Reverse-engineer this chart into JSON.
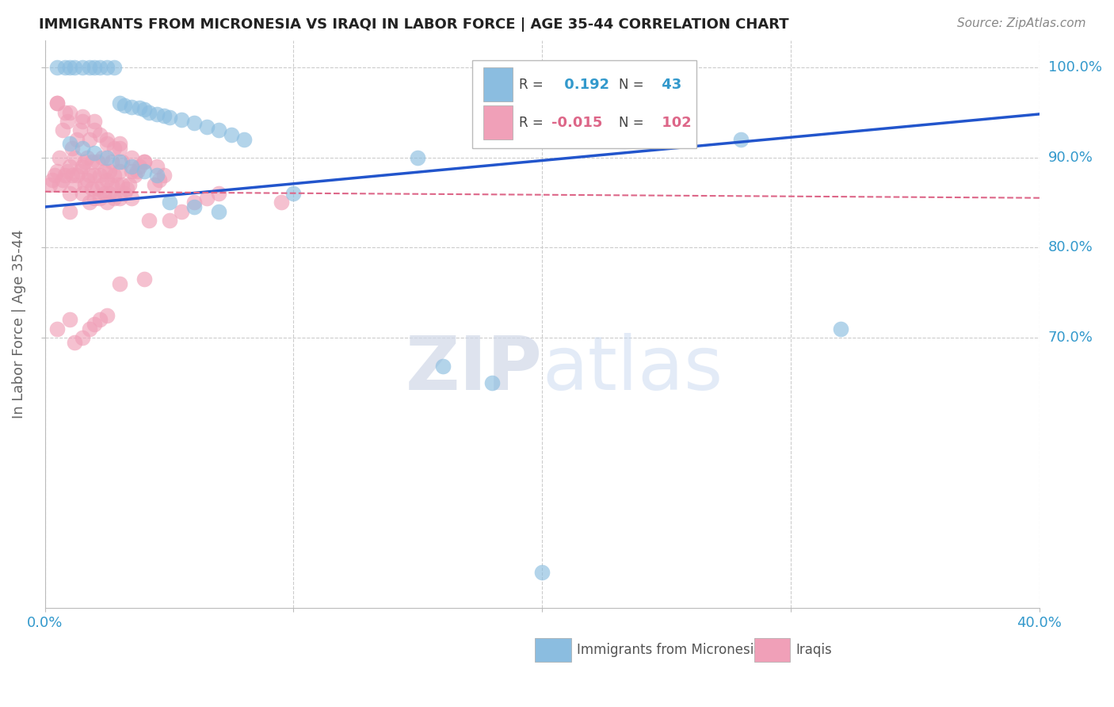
{
  "title": "IMMIGRANTS FROM MICRONESIA VS IRAQI IN LABOR FORCE | AGE 35-44 CORRELATION CHART",
  "source": "Source: ZipAtlas.com",
  "ylabel": "In Labor Force | Age 35-44",
  "xlim": [
    0.0,
    0.4
  ],
  "ylim": [
    0.4,
    1.03
  ],
  "ytick_labels": [
    "100.0%",
    "90.0%",
    "80.0%",
    "70.0%"
  ],
  "ytick_values": [
    1.0,
    0.9,
    0.8,
    0.7
  ],
  "grid_color": "#cccccc",
  "blue_color": "#8bbde0",
  "pink_color": "#f0a0b8",
  "blue_line_color": "#2255cc",
  "pink_line_color": "#dd6688",
  "R_blue": 0.192,
  "N_blue": 43,
  "R_pink": -0.015,
  "N_pink": 102,
  "legend_label_blue": "Immigrants from Micronesia",
  "legend_label_pink": "Iraqis",
  "watermark_ZIP": "ZIP",
  "watermark_atlas": "atlas",
  "blue_line_x0": 0.0,
  "blue_line_y0": 0.845,
  "blue_line_x1": 0.4,
  "blue_line_y1": 0.948,
  "pink_line_x0": 0.0,
  "pink_line_y0": 0.862,
  "pink_line_x1": 0.4,
  "pink_line_y1": 0.855,
  "blue_scatter_x": [
    0.005,
    0.008,
    0.01,
    0.012,
    0.015,
    0.018,
    0.02,
    0.022,
    0.025,
    0.028,
    0.03,
    0.032,
    0.035,
    0.038,
    0.04,
    0.042,
    0.045,
    0.048,
    0.05,
    0.055,
    0.06,
    0.065,
    0.07,
    0.075,
    0.08,
    0.01,
    0.015,
    0.02,
    0.025,
    0.03,
    0.035,
    0.04,
    0.045,
    0.1,
    0.15,
    0.28,
    0.32,
    0.18,
    0.05,
    0.06,
    0.07,
    0.16,
    0.2
  ],
  "blue_scatter_y": [
    1.0,
    1.0,
    1.0,
    1.0,
    1.0,
    1.0,
    1.0,
    1.0,
    1.0,
    1.0,
    0.96,
    0.958,
    0.956,
    0.955,
    0.953,
    0.95,
    0.948,
    0.946,
    0.944,
    0.942,
    0.938,
    0.934,
    0.93,
    0.925,
    0.92,
    0.915,
    0.91,
    0.905,
    0.9,
    0.895,
    0.89,
    0.885,
    0.88,
    0.86,
    0.9,
    0.92,
    0.71,
    0.65,
    0.85,
    0.845,
    0.84,
    0.668,
    0.44
  ],
  "pink_scatter_x": [
    0.002,
    0.003,
    0.004,
    0.005,
    0.005,
    0.006,
    0.006,
    0.007,
    0.007,
    0.008,
    0.008,
    0.009,
    0.009,
    0.01,
    0.01,
    0.01,
    0.011,
    0.011,
    0.012,
    0.012,
    0.013,
    0.013,
    0.014,
    0.014,
    0.015,
    0.015,
    0.015,
    0.016,
    0.016,
    0.017,
    0.017,
    0.018,
    0.018,
    0.018,
    0.019,
    0.019,
    0.02,
    0.02,
    0.02,
    0.021,
    0.021,
    0.022,
    0.022,
    0.022,
    0.023,
    0.023,
    0.024,
    0.024,
    0.025,
    0.025,
    0.025,
    0.026,
    0.026,
    0.027,
    0.027,
    0.028,
    0.028,
    0.028,
    0.029,
    0.03,
    0.03,
    0.03,
    0.031,
    0.031,
    0.032,
    0.033,
    0.034,
    0.035,
    0.035,
    0.036,
    0.037,
    0.038,
    0.04,
    0.042,
    0.044,
    0.046,
    0.048,
    0.05,
    0.055,
    0.06,
    0.065,
    0.07,
    0.005,
    0.01,
    0.015,
    0.02,
    0.025,
    0.03,
    0.035,
    0.04,
    0.045,
    0.095,
    0.03,
    0.04,
    0.005,
    0.01,
    0.012,
    0.015,
    0.018,
    0.02,
    0.022,
    0.025
  ],
  "pink_scatter_y": [
    0.87,
    0.875,
    0.88,
    0.885,
    0.96,
    0.87,
    0.9,
    0.875,
    0.93,
    0.88,
    0.95,
    0.885,
    0.94,
    0.84,
    0.86,
    0.89,
    0.88,
    0.91,
    0.87,
    0.9,
    0.88,
    0.92,
    0.885,
    0.93,
    0.86,
    0.89,
    0.94,
    0.87,
    0.895,
    0.875,
    0.9,
    0.85,
    0.88,
    0.92,
    0.865,
    0.895,
    0.855,
    0.88,
    0.93,
    0.865,
    0.895,
    0.855,
    0.88,
    0.925,
    0.87,
    0.9,
    0.86,
    0.885,
    0.85,
    0.875,
    0.915,
    0.86,
    0.885,
    0.87,
    0.895,
    0.855,
    0.88,
    0.91,
    0.87,
    0.855,
    0.885,
    0.915,
    0.87,
    0.895,
    0.86,
    0.865,
    0.87,
    0.855,
    0.885,
    0.88,
    0.885,
    0.89,
    0.895,
    0.83,
    0.87,
    0.875,
    0.88,
    0.83,
    0.84,
    0.85,
    0.855,
    0.86,
    0.96,
    0.95,
    0.945,
    0.94,
    0.92,
    0.91,
    0.9,
    0.895,
    0.89,
    0.85,
    0.76,
    0.765,
    0.71,
    0.72,
    0.695,
    0.7,
    0.71,
    0.715,
    0.72,
    0.725
  ]
}
